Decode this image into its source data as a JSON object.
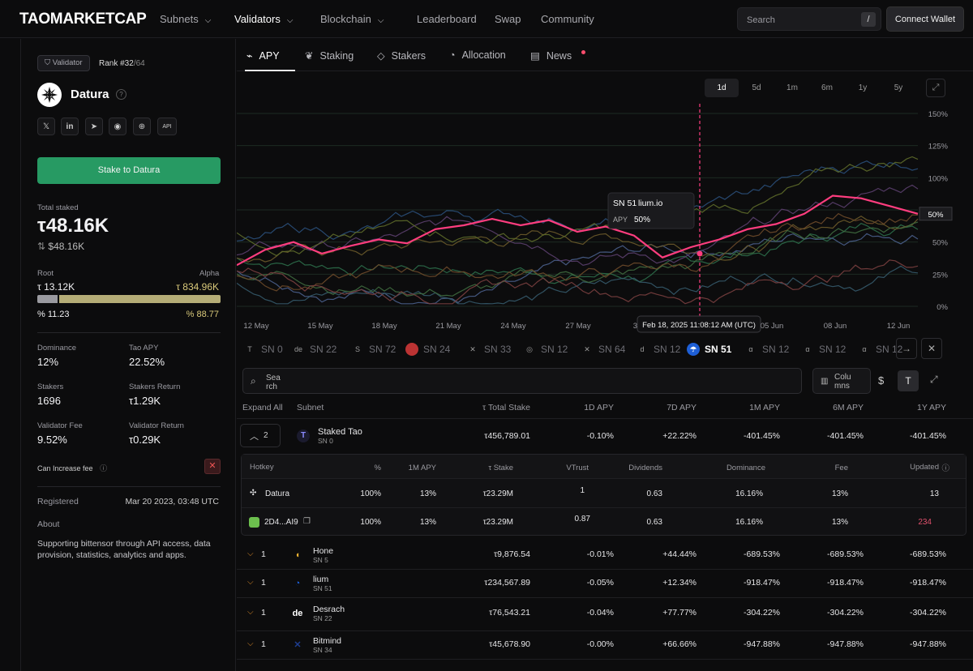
{
  "brand": {
    "logo": "TAOMARKETCAP"
  },
  "nav": {
    "items": [
      "Subnets",
      "Validators",
      "Blockchain",
      "Leaderboard",
      "Swap",
      "Community"
    ],
    "search_placeholder": "Search",
    "search_shortcut": "/",
    "connect": "Connect Wallet"
  },
  "validator": {
    "badge": "Validator",
    "rank_label": "Rank #32",
    "rank_total": "/64",
    "name": "Datura",
    "stake_button": "Stake to Datura",
    "total_staked_label": "Total staked",
    "total_staked": "τ48.16K",
    "total_staked_usd": "$48.16K",
    "root_label": "Root",
    "alpha_label": "Alpha",
    "root_value": "τ 13.12K",
    "alpha_value": "τ 834.96K",
    "root_pct": "% 11.23",
    "alpha_pct": "% 88.77",
    "root_fraction": 0.1123,
    "dominance_label": "Dominance",
    "dominance": "12%",
    "tao_apy_label": "Tao APY",
    "tao_apy": "22.52%",
    "stakers_label": "Stakers",
    "stakers": "1696",
    "stakers_return_label": "Stakers Return",
    "stakers_return": "τ1.29K",
    "fee_label": "Validator Fee",
    "fee": "9.52%",
    "return_label": "Validator Return",
    "return": "τ0.29K",
    "can_increase_fee": "Can Increase fee",
    "registered_label": "Registered",
    "registered": "Mar 20 2023, 03:48 UTC",
    "about_label": "About",
    "about": "Supporting bittensor through API access, data provision, statistics, analytics and apps."
  },
  "tabs": [
    "APY",
    "Staking",
    "Stakers",
    "Allocation",
    "News"
  ],
  "ranges": [
    "1d",
    "5d",
    "1m",
    "6m",
    "1y",
    "5y"
  ],
  "chart_data": {
    "type": "line",
    "x_ticks": [
      "12 May",
      "15 May",
      "18 May",
      "21 May",
      "24 May",
      "27 May",
      "30",
      "05 Jun",
      "08 Jun",
      "12 Jun"
    ],
    "y_ticks": [
      "0%",
      "25%",
      "50%",
      "75%",
      "100%",
      "125%",
      "150%"
    ],
    "ylim": [
      0,
      150
    ],
    "current_value_label": "50%",
    "tooltip": {
      "subnet": "SN 51",
      "name": "lium.io",
      "metric": "APY",
      "value": "50%"
    },
    "crosshair_label": "Feb 18, 2025 11:08:12 AM (UTC)",
    "highlight_series": {
      "name": "SN 51",
      "color": "#ff3d7f",
      "values": [
        32,
        44,
        50,
        41,
        47,
        52,
        49,
        60,
        63,
        68,
        63,
        67,
        58,
        62,
        55,
        38,
        46,
        52,
        60,
        64,
        72,
        86,
        84,
        78,
        72
      ]
    },
    "series_colors": [
      "#2c6e4a",
      "#4a5f8c",
      "#6b5a2a",
      "#355a6b",
      "#5b3f6e",
      "#3f6b3f",
      "#6e4a2a",
      "#2a4f7a",
      "#5e6b2a",
      "#7a3f3f"
    ]
  },
  "strip": [
    {
      "icon": "T",
      "label": "SN 0"
    },
    {
      "icon": "de",
      "label": "SN 22"
    },
    {
      "icon": "S",
      "label": "SN 72"
    },
    {
      "icon": "●",
      "label": "SN 24"
    },
    {
      "icon": "✕",
      "label": "SN 33"
    },
    {
      "icon": "◎",
      "label": "SN 12"
    },
    {
      "icon": "✕",
      "label": "SN 64"
    },
    {
      "icon": "d",
      "label": "SN 12"
    },
    {
      "icon": "☂",
      "label": "SN 51"
    },
    {
      "icon": "α",
      "label": "SN 12"
    },
    {
      "icon": "α",
      "label": "SN 12"
    },
    {
      "icon": "α",
      "label": "SN 12"
    }
  ],
  "table": {
    "search": "Sea rch",
    "columns_btn": "Colu mns",
    "currency_usd": "$",
    "currency_tao": "T",
    "headers": [
      "Expand All",
      "Subnet",
      "τ Total Stake",
      "1D APY",
      "7D APY",
      "1M APY",
      "6M APY",
      "1Y APY"
    ],
    "expanded": {
      "count": "2",
      "name": "Staked Tao",
      "sn": "SN 0",
      "stake": "τ456,789.01",
      "d1": "-0.10%",
      "d7": "+22.22%",
      "m1": "-401.45%",
      "m6": "-401.45%",
      "y1": "-401.45%"
    },
    "subheaders": [
      "Hotkey",
      "%",
      "1M APY",
      "τ Stake",
      "VTrust",
      "Dividends",
      "Dominance",
      "Fee",
      "Updated"
    ],
    "subrows": [
      {
        "hotkey": "Datura",
        "pct": "100%",
        "apy": "13%",
        "stake": "τ23.29M",
        "vtrust": "1",
        "div": "0.63",
        "dom": "16.16%",
        "fee": "13%",
        "updated": "13"
      },
      {
        "hotkey": "2D4...AI9",
        "pct": "100%",
        "apy": "13%",
        "stake": "τ23.29M",
        "vtrust": "0.87",
        "div": "0.63",
        "dom": "16.16%",
        "fee": "13%",
        "updated": "234"
      }
    ],
    "rows": [
      {
        "count": "1",
        "name": "Hone",
        "sn": "SN 5",
        "stake": "τ9,876.54",
        "d1": "-0.01%",
        "d7": "+44.44%",
        "m1": "-689.53%",
        "m6": "-689.53%",
        "y1": "-689.53%"
      },
      {
        "count": "1",
        "name": "lium",
        "sn": "SN 51",
        "stake": "τ234,567.89",
        "d1": "-0.05%",
        "d7": "+12.34%",
        "m1": "-918.47%",
        "m6": "-918.47%",
        "y1": "-918.47%"
      },
      {
        "count": "1",
        "name": "Desrach",
        "sn": "SN 22",
        "stake": "τ76,543.21",
        "d1": "-0.04%",
        "d7": "+77.77%",
        "m1": "-304.22%",
        "m6": "-304.22%",
        "y1": "-304.22%"
      },
      {
        "count": "1",
        "name": "Bitmind",
        "sn": "SN 34",
        "stake": "τ45,678.90",
        "d1": "-0.00%",
        "d7": "+66.66%",
        "m1": "-947.88%",
        "m6": "-947.88%",
        "y1": "-947.88%"
      }
    ]
  }
}
